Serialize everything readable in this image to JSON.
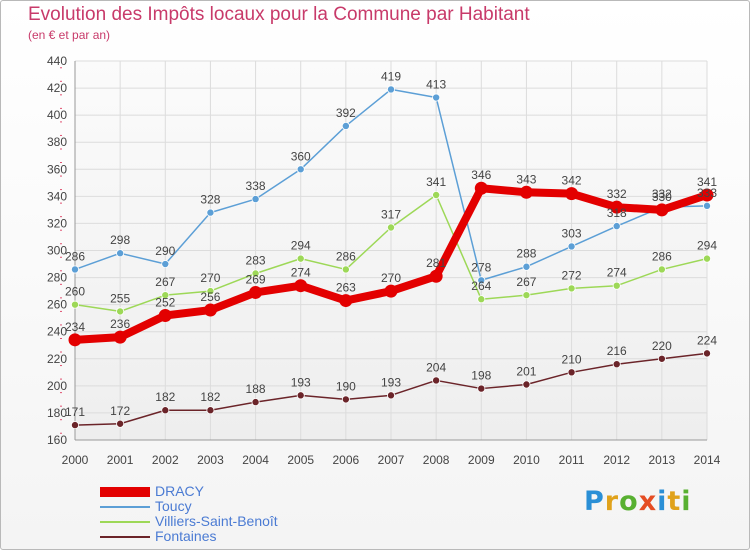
{
  "header": {
    "title": "Evolution des Impôts locaux pour la Commune par Habitant",
    "subtitle": "(en € et par an)"
  },
  "logo": {
    "text": [
      "P",
      "r",
      "o",
      "x",
      "i",
      "t",
      "i"
    ],
    "colors": [
      "#2a8fd6",
      "#e0a21b",
      "#58b031",
      "#e54d23",
      "#2a8fd6",
      "#e0a21b",
      "#58b031"
    ]
  },
  "chart_data": {
    "type": "line",
    "x": [
      "2000",
      "2001",
      "2002",
      "2003",
      "2004",
      "2005",
      "2006",
      "2007",
      "2008",
      "2009",
      "2010",
      "2011",
      "2012",
      "2013",
      "2014"
    ],
    "ylim": [
      160,
      440
    ],
    "yticks": [
      160,
      180,
      200,
      220,
      240,
      260,
      280,
      300,
      320,
      340,
      360,
      380,
      400,
      420,
      440
    ],
    "grid": true,
    "legend": "bottom-left",
    "series": [
      {
        "name": "DRACY",
        "color": "#e30000",
        "values": [
          234,
          236,
          252,
          256,
          269,
          274,
          263,
          270,
          281,
          346,
          343,
          342,
          332,
          330,
          341
        ],
        "labels": [
          "234",
          "236",
          "252",
          "256",
          "269",
          "274",
          "263",
          "270",
          "281",
          "346",
          "343",
          "342",
          "332",
          "330",
          "341"
        ]
      },
      {
        "name": "Toucy",
        "color": "#5c9fd6",
        "values": [
          286,
          298,
          290,
          328,
          338,
          360,
          392,
          419,
          413,
          278,
          288,
          303,
          318,
          332,
          333
        ],
        "labels": [
          "286",
          "298",
          "290",
          "328",
          "338",
          "360",
          "392",
          "419",
          "413",
          "278",
          "288",
          "303",
          "318",
          "332",
          "333"
        ]
      },
      {
        "name": "Villiers-Saint-Benoît",
        "color": "#9dd857",
        "values": [
          260,
          255,
          267,
          270,
          283,
          294,
          286,
          317,
          341,
          264,
          267,
          272,
          274,
          286,
          294
        ],
        "labels": [
          "260",
          "255",
          "267",
          "270",
          "283",
          "294",
          "286",
          "317",
          "341",
          "264",
          "267",
          "272",
          "274",
          "286",
          "294"
        ]
      },
      {
        "name": "Fontaines",
        "color": "#6b2429",
        "values": [
          171,
          172,
          182,
          182,
          188,
          193,
          190,
          193,
          204,
          198,
          201,
          210,
          216,
          220,
          224
        ],
        "labels": [
          "171",
          "172",
          "182",
          "182",
          "188",
          "193",
          "190",
          "193",
          "204",
          "198",
          "201",
          "210",
          "216",
          "220",
          "224"
        ]
      }
    ]
  }
}
